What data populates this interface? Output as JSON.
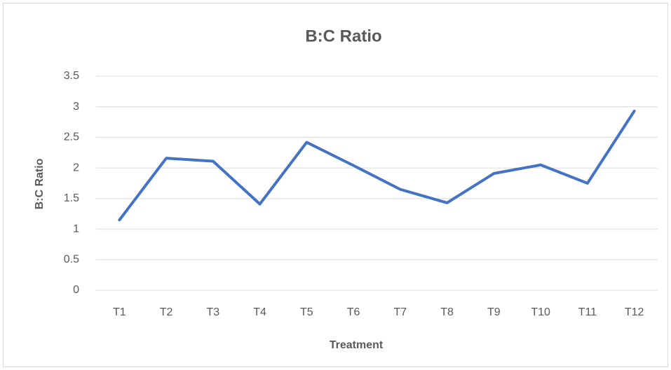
{
  "chart_data": {
    "type": "line",
    "title": "B:C Ratio",
    "x_label": "Treatment",
    "y_label": "B:C Ratio",
    "categories": [
      "T1",
      "T2",
      "T3",
      "T4",
      "T5",
      "T6",
      "T7",
      "T8",
      "T9",
      "T10",
      "T11",
      "T12"
    ],
    "series": [
      {
        "name": "B:C Ratio",
        "color": "#4472c4",
        "values": [
          1.15,
          2.16,
          2.11,
          1.41,
          2.42,
          2.04,
          1.65,
          1.43,
          1.91,
          2.05,
          1.75,
          2.93
        ]
      }
    ],
    "ylim": [
      0,
      3.5
    ],
    "yticks": [
      0,
      0.5,
      1,
      1.5,
      2,
      2.5,
      3,
      3.5
    ],
    "grid": true
  }
}
